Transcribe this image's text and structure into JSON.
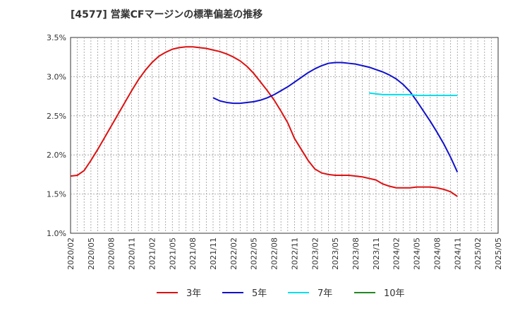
{
  "chart_data": {
    "type": "line",
    "title": "[4577]  営業CFマージンの標準偏差の推移",
    "xlabel": "",
    "ylabel": "",
    "ylim": [
      1.0,
      3.5
    ],
    "ytick_labels": [
      "1.0%",
      "1.5%",
      "2.0%",
      "2.5%",
      "3.0%",
      "3.5%"
    ],
    "yticks": [
      1.0,
      1.5,
      2.0,
      2.5,
      3.0,
      3.5
    ],
    "xtick_labels": [
      "2020/02",
      "2020/05",
      "2020/08",
      "2020/11",
      "2021/02",
      "2021/05",
      "2021/08",
      "2021/11",
      "2022/02",
      "2022/05",
      "2022/08",
      "2022/11",
      "2023/02",
      "2023/05",
      "2023/08",
      "2023/11",
      "2024/02",
      "2024/05",
      "2024/08",
      "2024/11",
      "2025/02",
      "2025/05"
    ],
    "x_start": "2020/02",
    "x_end": "2025/05",
    "grid": true,
    "legend_position": "bottom",
    "series": [
      {
        "name": "3年",
        "color": "#dd1111",
        "x": [
          "2020/02",
          "2020/03",
          "2020/04",
          "2020/05",
          "2020/06",
          "2020/07",
          "2020/08",
          "2020/09",
          "2020/10",
          "2020/11",
          "2020/12",
          "2021/01",
          "2021/02",
          "2021/03",
          "2021/04",
          "2021/05",
          "2021/06",
          "2021/07",
          "2021/08",
          "2021/09",
          "2021/10",
          "2021/11",
          "2021/12",
          "2022/01",
          "2022/02",
          "2022/03",
          "2022/04",
          "2022/05",
          "2022/06",
          "2022/07",
          "2022/08",
          "2022/09",
          "2022/10",
          "2022/11",
          "2022/12",
          "2023/01",
          "2023/02",
          "2023/03",
          "2023/04",
          "2023/05",
          "2023/06",
          "2023/07",
          "2023/08",
          "2023/09",
          "2023/10",
          "2023/11",
          "2023/12",
          "2024/01",
          "2024/02",
          "2024/03",
          "2024/04",
          "2024/05",
          "2024/06",
          "2024/07",
          "2024/08",
          "2024/09",
          "2024/10",
          "2024/11"
        ],
        "values": [
          1.73,
          1.74,
          1.8,
          1.93,
          2.07,
          2.22,
          2.37,
          2.52,
          2.67,
          2.82,
          2.96,
          3.08,
          3.18,
          3.26,
          3.31,
          3.35,
          3.37,
          3.38,
          3.38,
          3.37,
          3.36,
          3.34,
          3.32,
          3.29,
          3.25,
          3.2,
          3.13,
          3.04,
          2.93,
          2.82,
          2.7,
          2.56,
          2.41,
          2.21,
          2.07,
          1.93,
          1.82,
          1.77,
          1.75,
          1.74,
          1.74,
          1.74,
          1.73,
          1.72,
          1.7,
          1.68,
          1.63,
          1.6,
          1.58,
          1.58,
          1.58,
          1.59,
          1.59,
          1.59,
          1.58,
          1.56,
          1.53,
          1.47
        ]
      },
      {
        "name": "5年",
        "color": "#1111cc",
        "x": [
          "2021/11",
          "2021/12",
          "2022/01",
          "2022/02",
          "2022/03",
          "2022/04",
          "2022/05",
          "2022/06",
          "2022/07",
          "2022/08",
          "2022/09",
          "2022/10",
          "2022/11",
          "2022/12",
          "2023/01",
          "2023/02",
          "2023/03",
          "2023/04",
          "2023/05",
          "2023/06",
          "2023/07",
          "2023/08",
          "2023/09",
          "2023/10",
          "2023/11",
          "2023/12",
          "2024/01",
          "2024/02",
          "2024/03",
          "2024/04",
          "2024/05",
          "2024/06",
          "2024/07",
          "2024/08",
          "2024/09",
          "2024/10",
          "2024/11"
        ],
        "values": [
          2.73,
          2.69,
          2.67,
          2.66,
          2.66,
          2.67,
          2.68,
          2.7,
          2.73,
          2.77,
          2.82,
          2.87,
          2.93,
          2.99,
          3.05,
          3.1,
          3.14,
          3.17,
          3.18,
          3.18,
          3.17,
          3.16,
          3.14,
          3.12,
          3.09,
          3.06,
          3.02,
          2.97,
          2.9,
          2.81,
          2.69,
          2.56,
          2.43,
          2.29,
          2.14,
          1.97,
          1.78
        ]
      },
      {
        "name": "7年",
        "color": "#00ddee",
        "x": [
          "2023/10",
          "2023/11",
          "2023/12",
          "2024/01",
          "2024/02",
          "2024/03",
          "2024/04",
          "2024/05",
          "2024/06",
          "2024/07",
          "2024/08",
          "2024/09",
          "2024/10",
          "2024/11"
        ],
        "values": [
          2.79,
          2.78,
          2.77,
          2.77,
          2.77,
          2.77,
          2.77,
          2.76,
          2.76,
          2.76,
          2.76,
          2.76,
          2.76,
          2.76
        ]
      },
      {
        "name": "10年",
        "color": "#228822",
        "x": [],
        "values": []
      }
    ]
  }
}
